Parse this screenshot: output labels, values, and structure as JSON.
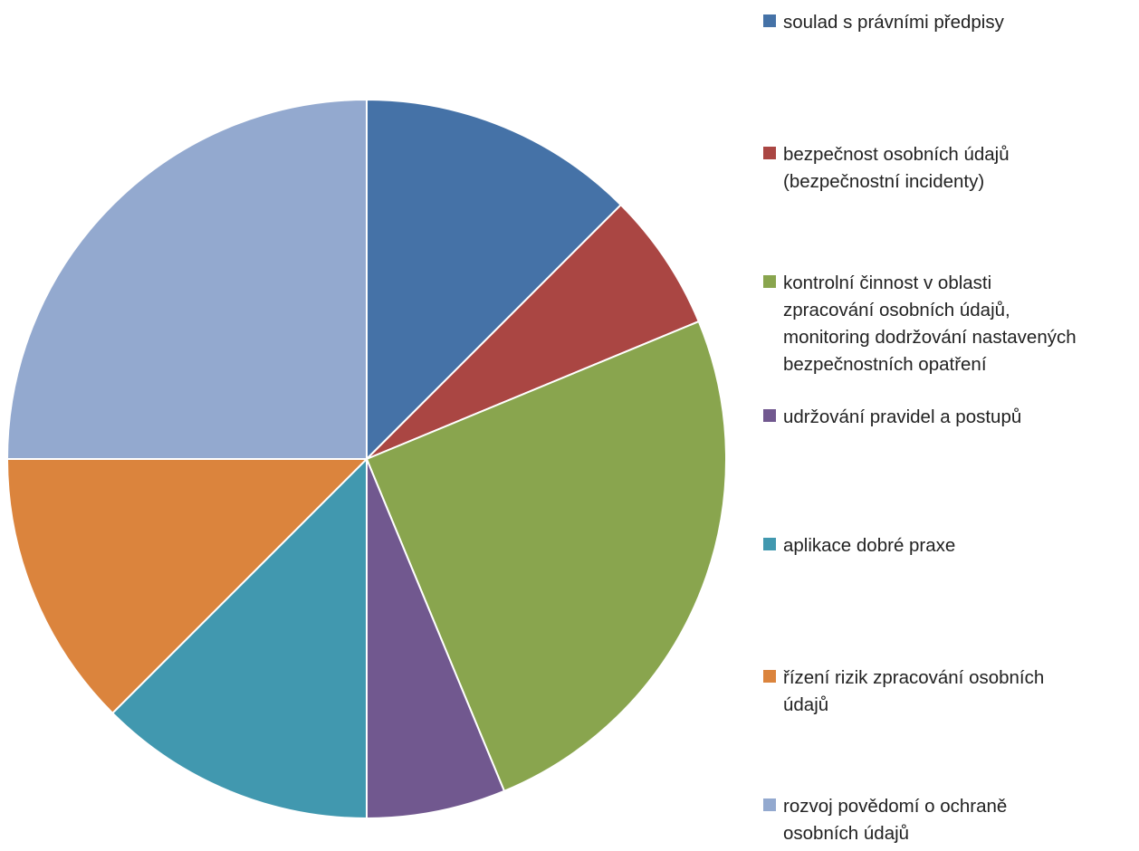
{
  "chart_data": {
    "type": "pie",
    "title": "",
    "start_angle": "12 o'clock, clockwise",
    "legend_position": "right",
    "slices": [
      {
        "label": "soulad s právními předpisy",
        "value": 12.5,
        "color": "#4572A7"
      },
      {
        "label": "bezpečnost osobních údajů (bezpečnostní incidenty)",
        "value": 6.25,
        "color": "#AA4643"
      },
      {
        "label": "kontrolní činnost v oblasti zpracování osobních údajů, monitoring dodržování nastavených bezpečnostních opatření",
        "value": 25,
        "color": "#89A54E"
      },
      {
        "label": "udržování pravidel a postupů",
        "value": 6.25,
        "color": "#71588F"
      },
      {
        "label": "aplikace dobré praxe",
        "value": 12.5,
        "color": "#4198AF"
      },
      {
        "label": "řízení rizik zpracování osobních údajů",
        "value": 12.5,
        "color": "#DB843D"
      },
      {
        "label": "rozvoj povědomí o ochraně osobních údajů",
        "value": 25,
        "color": "#93A9CF"
      }
    ]
  },
  "legend": {
    "items": [
      {
        "lines": [
          "soulad s právními předpisy"
        ]
      },
      {
        "lines": [
          "bezpečnost osobních údajů",
          "(bezpečnostní incidenty)"
        ]
      },
      {
        "lines": [
          "kontrolní činnost v oblasti",
          "zpracování osobních údajů,",
          "monitoring dodržování nastavených",
          "bezpečnostních opatření"
        ]
      },
      {
        "lines": [
          "udržování pravidel a postupů"
        ]
      },
      {
        "lines": [
          "aplikace dobré praxe"
        ]
      },
      {
        "lines": [
          "řízení rizik zpracování osobních",
          "údajů"
        ]
      },
      {
        "lines": [
          "rozvoj povědomí o ochraně",
          "osobních údajů"
        ]
      }
    ]
  }
}
